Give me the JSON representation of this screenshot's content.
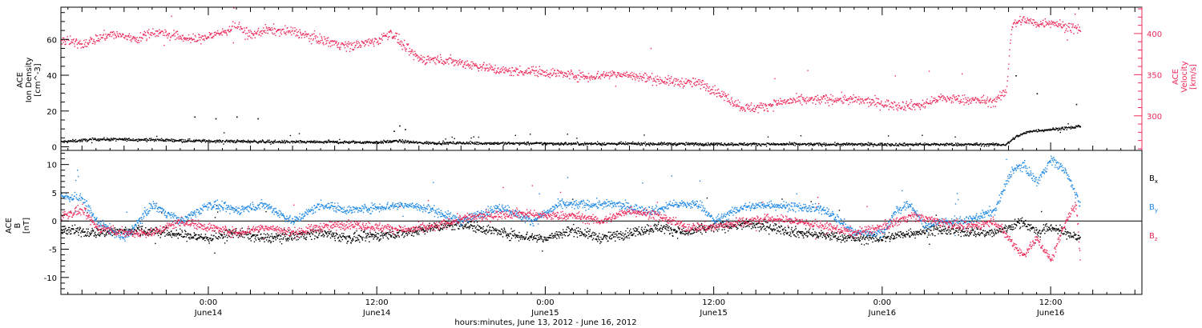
{
  "colors": {
    "black": "#000000",
    "pink": "#ee2a5a",
    "blue": "#1e88e5"
  },
  "chart_data": [
    {
      "type": "scatter",
      "panel": "top",
      "xlabel": "hours:minutes, June 13, 2012 - June 16, 2012",
      "x_ticks": [
        {
          "t": 0,
          "time": "0:00",
          "date": "June14"
        },
        {
          "t": 12,
          "time": "12:00",
          "date": "June14"
        },
        {
          "t": 24,
          "time": "0:00",
          "date": "June15"
        },
        {
          "t": 36,
          "time": "12:00",
          "date": "June15"
        },
        {
          "t": 48,
          "time": "0:00",
          "date": "June16"
        },
        {
          "t": 60,
          "time": "12:00",
          "date": "June16"
        }
      ],
      "xlim_hours_from_june14": [
        -10.5,
        66.5
      ],
      "ylabel_left": [
        "ACE",
        "Ion Density",
        "[cm^-3]"
      ],
      "ylim_left": [
        -2,
        78
      ],
      "yticks_left": [
        0,
        20,
        40,
        60
      ],
      "ylabel_right": [
        "ACE",
        "Velocity",
        "[km/s]"
      ],
      "ylim_right": [
        258,
        432
      ],
      "yticks_right": [
        300,
        350,
        400
      ],
      "series": [
        {
          "name": "",
          "axis": "left",
          "color_key": "black",
          "anchors": [
            [
              -10.5,
              3.0
            ],
            [
              -8,
              4.5
            ],
            [
              -4,
              4.2
            ],
            [
              0,
              3.5
            ],
            [
              6,
              3.0
            ],
            [
              12,
              2.8
            ],
            [
              13.5,
              3.5
            ],
            [
              15,
              2.5
            ],
            [
              20,
              2.3
            ],
            [
              26,
              2.0
            ],
            [
              30,
              2.0
            ],
            [
              36,
              1.8
            ],
            [
              42,
              1.7
            ],
            [
              48,
              1.6
            ],
            [
              54,
              1.6
            ],
            [
              56.8,
              1.5
            ],
            [
              57.5,
              6
            ],
            [
              58.5,
              9
            ],
            [
              60,
              10
            ],
            [
              61.5,
              11
            ],
            [
              62.1,
              12
            ]
          ],
          "noise": 0.8,
          "outliers": [
            [
              -1,
              17
            ],
            [
              0.5,
              16
            ],
            [
              2,
              17
            ],
            [
              3.5,
              16
            ],
            [
              13.2,
              9
            ],
            [
              13.6,
              12
            ],
            [
              14,
              10
            ],
            [
              57.5,
              40
            ],
            [
              59,
              30
            ],
            [
              61.8,
              24
            ]
          ]
        },
        {
          "name": "",
          "axis": "right",
          "color_key": "pink",
          "anchors": [
            [
              -10.5,
              392
            ],
            [
              -9,
              388
            ],
            [
              -7,
              400
            ],
            [
              -5,
              394
            ],
            [
              -4,
              403
            ],
            [
              -1,
              393
            ],
            [
              1,
              402
            ],
            [
              2,
              410
            ],
            [
              3,
              398
            ],
            [
              4,
              405
            ],
            [
              6,
              403
            ],
            [
              8,
              393
            ],
            [
              10,
              385
            ],
            [
              12,
              392
            ],
            [
              13,
              402
            ],
            [
              14,
              383
            ],
            [
              15,
              370
            ],
            [
              17,
              368
            ],
            [
              19,
              362
            ],
            [
              21,
              355
            ],
            [
              23,
              355
            ],
            [
              25,
              352
            ],
            [
              27,
              348
            ],
            [
              29,
              352
            ],
            [
              31,
              347
            ],
            [
              33,
              342
            ],
            [
              35,
              340
            ],
            [
              36,
              332
            ],
            [
              38,
              311
            ],
            [
              39,
              310
            ],
            [
              41,
              318
            ],
            [
              43,
              320
            ],
            [
              45,
              321
            ],
            [
              47,
              318
            ],
            [
              49,
              313
            ],
            [
              51,
              314
            ],
            [
              52,
              322
            ],
            [
              54,
              320
            ],
            [
              56,
              318
            ],
            [
              56.8,
              330
            ],
            [
              57.2,
              410
            ],
            [
              58,
              418
            ],
            [
              59,
              412
            ],
            [
              60,
              415
            ],
            [
              61,
              409
            ],
            [
              62.1,
              405
            ]
          ],
          "noise": 6
        }
      ]
    },
    {
      "type": "scatter",
      "panel": "bottom",
      "ylabel": [
        "ACE",
        "B",
        "[nT]"
      ],
      "ylim": [
        -13,
        12.5
      ],
      "yticks": [
        -10,
        -5,
        0,
        5,
        10
      ],
      "zero_line": true,
      "series": [
        {
          "name": "Bx",
          "color_key": "black",
          "anchors": [
            [
              -10.5,
              -1.5
            ],
            [
              -8,
              -2
            ],
            [
              -5,
              -1.5
            ],
            [
              -3,
              -2
            ],
            [
              0,
              -3
            ],
            [
              2,
              -2
            ],
            [
              4,
              -3
            ],
            [
              8,
              -2
            ],
            [
              10,
              -3
            ],
            [
              12,
              -2.5
            ],
            [
              14,
              -2
            ],
            [
              16,
              -1
            ],
            [
              18,
              -0.5
            ],
            [
              20,
              -1.5
            ],
            [
              22,
              -2.5
            ],
            [
              24,
              -3
            ],
            [
              26,
              -1.5
            ],
            [
              28,
              -3
            ],
            [
              30,
              -2
            ],
            [
              32,
              -1
            ],
            [
              34,
              -2
            ],
            [
              36,
              -1
            ],
            [
              38,
              -0.5
            ],
            [
              40,
              -1
            ],
            [
              42,
              -2
            ],
            [
              44,
              -2.5
            ],
            [
              46,
              -3
            ],
            [
              48,
              -3
            ],
            [
              50,
              -2
            ],
            [
              52,
              -1.5
            ],
            [
              54,
              -1.8
            ],
            [
              56,
              -2
            ],
            [
              57,
              -1
            ],
            [
              58,
              0
            ],
            [
              59,
              -2
            ],
            [
              60,
              -1
            ],
            [
              61,
              -2
            ],
            [
              62.1,
              -3
            ]
          ],
          "noise": 0.9
        },
        {
          "name": "By",
          "color_key": "blue",
          "anchors": [
            [
              -10.5,
              4.5
            ],
            [
              -9,
              4
            ],
            [
              -8,
              0
            ],
            [
              -6,
              -3
            ],
            [
              -4,
              3
            ],
            [
              -2,
              0
            ],
            [
              0,
              3
            ],
            [
              2,
              2
            ],
            [
              4,
              3
            ],
            [
              6,
              0
            ],
            [
              8,
              3
            ],
            [
              10,
              2
            ],
            [
              12,
              2.5
            ],
            [
              14,
              3
            ],
            [
              16,
              2
            ],
            [
              18,
              0
            ],
            [
              20,
              2
            ],
            [
              21,
              2.5
            ],
            [
              23,
              0
            ],
            [
              25,
              3
            ],
            [
              27,
              3
            ],
            [
              29,
              3
            ],
            [
              31,
              2
            ],
            [
              32,
              2
            ],
            [
              33,
              3
            ],
            [
              35,
              3
            ],
            [
              36,
              0
            ],
            [
              38,
              2.5
            ],
            [
              40,
              3
            ],
            [
              42,
              2.5
            ],
            [
              44,
              2
            ],
            [
              45,
              0
            ],
            [
              46,
              -2
            ],
            [
              48,
              -2
            ],
            [
              49,
              2
            ],
            [
              50,
              3
            ],
            [
              51,
              -1
            ],
            [
              52,
              0
            ],
            [
              54,
              0
            ],
            [
              56,
              2
            ],
            [
              57.2,
              9
            ],
            [
              58,
              10
            ],
            [
              59,
              7
            ],
            [
              60,
              11
            ],
            [
              61,
              9
            ],
            [
              62.1,
              3
            ]
          ],
          "noise": 0.8
        },
        {
          "name": "Bz",
          "color_key": "pink",
          "anchors": [
            [
              -10.5,
              1
            ],
            [
              -9,
              2
            ],
            [
              -8,
              -1
            ],
            [
              -6,
              -2
            ],
            [
              -4,
              -2
            ],
            [
              -2,
              0
            ],
            [
              0,
              -1
            ],
            [
              2,
              -2
            ],
            [
              4,
              -1
            ],
            [
              6,
              -2
            ],
            [
              8,
              -1
            ],
            [
              10,
              -0.5
            ],
            [
              12,
              -1
            ],
            [
              14,
              -1.5
            ],
            [
              16,
              -1
            ],
            [
              18,
              0.5
            ],
            [
              20,
              1
            ],
            [
              22,
              1.5
            ],
            [
              24,
              1
            ],
            [
              26,
              1
            ],
            [
              28,
              0
            ],
            [
              29,
              1
            ],
            [
              30,
              2
            ],
            [
              32,
              1
            ],
            [
              34,
              -1
            ],
            [
              36,
              -1
            ],
            [
              38,
              0
            ],
            [
              40,
              0.5
            ],
            [
              42,
              0
            ],
            [
              44,
              -1
            ],
            [
              46,
              -2
            ],
            [
              48,
              -1
            ],
            [
              50,
              1
            ],
            [
              52,
              0
            ],
            [
              54,
              -1
            ],
            [
              56,
              0
            ],
            [
              57,
              -3
            ],
            [
              58,
              -6
            ],
            [
              59,
              -3
            ],
            [
              60,
              -7
            ],
            [
              61,
              0
            ],
            [
              61.8,
              3
            ],
            [
              62.1,
              -7.5
            ]
          ],
          "noise": 0.8
        }
      ],
      "legend": [
        {
          "symbol": "B",
          "subscript": "x",
          "color_key": "black"
        },
        {
          "symbol": "B",
          "subscript": "y",
          "color_key": "blue"
        },
        {
          "symbol": "B",
          "subscript": "z",
          "color_key": "pink"
        }
      ]
    }
  ]
}
